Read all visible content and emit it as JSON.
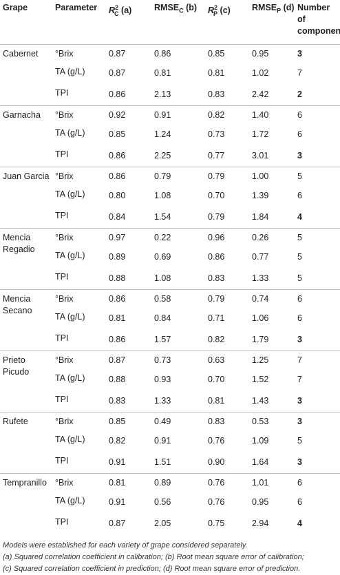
{
  "headers": {
    "grape": "Grape",
    "parameter": "Parameter",
    "r2c_base": "R",
    "r2c_sup": "2",
    "r2c_sub": "C",
    "r2c_suffix": "(a)",
    "rmsec_base": "RMSE",
    "rmsec_sub": "C",
    "rmsec_suffix": "(b)",
    "r2p_base": "R",
    "r2p_sup": "2",
    "r2p_sub": "P",
    "r2p_suffix": "(c)",
    "rmsep_base": "RMSE",
    "rmsep_sub": "P",
    "rmsep_suffix": "(d)",
    "ncomp_line1": "Number",
    "ncomp_line2": "of",
    "ncomp_line3": "components"
  },
  "groups": [
    {
      "grape": "Cabernet",
      "rows": [
        {
          "param": "°Brix",
          "r2c": "0.87",
          "rmsec": "0.86",
          "r2p": "0.85",
          "rmsep": "0.95",
          "n": "3",
          "bold": true
        },
        {
          "param": "TA (g/L)",
          "r2c": "0.87",
          "rmsec": "0.81",
          "r2p": "0.81",
          "rmsep": "1.02",
          "n": "7",
          "bold": false
        },
        {
          "param": "TPI",
          "r2c": "0.86",
          "rmsec": "2.13",
          "r2p": "0.83",
          "rmsep": "2.42",
          "n": "2",
          "bold": true
        }
      ]
    },
    {
      "grape": "Garnacha",
      "rows": [
        {
          "param": "°Brix",
          "r2c": "0.92",
          "rmsec": "0.91",
          "r2p": "0.82",
          "rmsep": "1.40",
          "n": "6",
          "bold": false
        },
        {
          "param": "TA (g/L)",
          "r2c": "0.85",
          "rmsec": "1.24",
          "r2p": "0.73",
          "rmsep": "1.72",
          "n": "6",
          "bold": false
        },
        {
          "param": "TPI",
          "r2c": "0.86",
          "rmsec": "2.25",
          "r2p": "0.77",
          "rmsep": "3.01",
          "n": "3",
          "bold": true
        }
      ]
    },
    {
      "grape": "Juan Garcia",
      "rows": [
        {
          "param": "°Brix",
          "r2c": "0.86",
          "rmsec": "0.79",
          "r2p": "0.79",
          "rmsep": "1.00",
          "n": "5",
          "bold": false
        },
        {
          "param": "TA (g/L)",
          "r2c": "0.80",
          "rmsec": "1.08",
          "r2p": "0.70",
          "rmsep": "1.39",
          "n": "6",
          "bold": false
        },
        {
          "param": "TPI",
          "r2c": "0.84",
          "rmsec": "1.54",
          "r2p": "0.79",
          "rmsep": "1.84",
          "n": "4",
          "bold": true
        }
      ]
    },
    {
      "grape": "Mencia Regadio",
      "rows": [
        {
          "param": "°Brix",
          "r2c": "0.97",
          "rmsec": "0.22",
          "r2p": "0.96",
          "rmsep": "0.26",
          "n": "5",
          "bold": false
        },
        {
          "param": "TA (g/L)",
          "r2c": "0.89",
          "rmsec": "0.69",
          "r2p": "0.86",
          "rmsep": "0.77",
          "n": "5",
          "bold": false
        },
        {
          "param": "TPI",
          "r2c": "0.88",
          "rmsec": "1.08",
          "r2p": "0.83",
          "rmsep": "1.33",
          "n": "5",
          "bold": false
        }
      ]
    },
    {
      "grape": "Mencia Secano",
      "rows": [
        {
          "param": "°Brix",
          "r2c": "0.86",
          "rmsec": "0.58",
          "r2p": "0.79",
          "rmsep": "0.74",
          "n": "6",
          "bold": false
        },
        {
          "param": "TA (g/L)",
          "r2c": "0.81",
          "rmsec": "0.84",
          "r2p": "0.71",
          "rmsep": "1.06",
          "n": "6",
          "bold": false
        },
        {
          "param": "TPI",
          "r2c": "0.86",
          "rmsec": "1.57",
          "r2p": "0.82",
          "rmsep": "1.79",
          "n": "3",
          "bold": true
        }
      ]
    },
    {
      "grape": "Prieto Picudo",
      "rows": [
        {
          "param": "°Brix",
          "r2c": "0.87",
          "rmsec": "0.73",
          "r2p": "0.63",
          "rmsep": "1.25",
          "n": "7",
          "bold": false
        },
        {
          "param": "TA (g/L)",
          "r2c": "0.88",
          "rmsec": "0.93",
          "r2p": "0.70",
          "rmsep": "1.52",
          "n": "7",
          "bold": false
        },
        {
          "param": "TPI",
          "r2c": "0.83",
          "rmsec": "1.33",
          "r2p": "0.81",
          "rmsep": "1.43",
          "n": "3",
          "bold": true
        }
      ]
    },
    {
      "grape": "Rufete",
      "rows": [
        {
          "param": "°Brix",
          "r2c": "0.85",
          "rmsec": "0.49",
          "r2p": "0.83",
          "rmsep": "0.53",
          "n": "3",
          "bold": true
        },
        {
          "param": "TA (g/L)",
          "r2c": "0.82",
          "rmsec": "0.91",
          "r2p": "0.76",
          "rmsep": "1.09",
          "n": "5",
          "bold": false
        },
        {
          "param": "TPI",
          "r2c": "0.91",
          "rmsec": "1.51",
          "r2p": "0.90",
          "rmsep": "1.64",
          "n": "3",
          "bold": true
        }
      ]
    },
    {
      "grape": "Tempranillo",
      "rows": [
        {
          "param": "°Brix",
          "r2c": "0.81",
          "rmsec": "0.89",
          "r2p": "0.76",
          "rmsep": "1.01",
          "n": "6",
          "bold": false
        },
        {
          "param": "TA (g/L)",
          "r2c": "0.91",
          "rmsec": "0.56",
          "r2p": "0.76",
          "rmsep": "0.95",
          "n": "6",
          "bold": false
        },
        {
          "param": "TPI",
          "r2c": "0.87",
          "rmsec": "2.05",
          "r2p": "0.75",
          "rmsep": "2.94",
          "n": "4",
          "bold": true
        }
      ]
    }
  ],
  "notes": [
    "Models were established for each variety of grape considered separately.",
    "(a) Squared correlation coefficient in calibration; (b) Root mean square error of calibration;",
    "(c) Squared correlation coefficient in prediction; (d) Root mean square error of prediction."
  ]
}
